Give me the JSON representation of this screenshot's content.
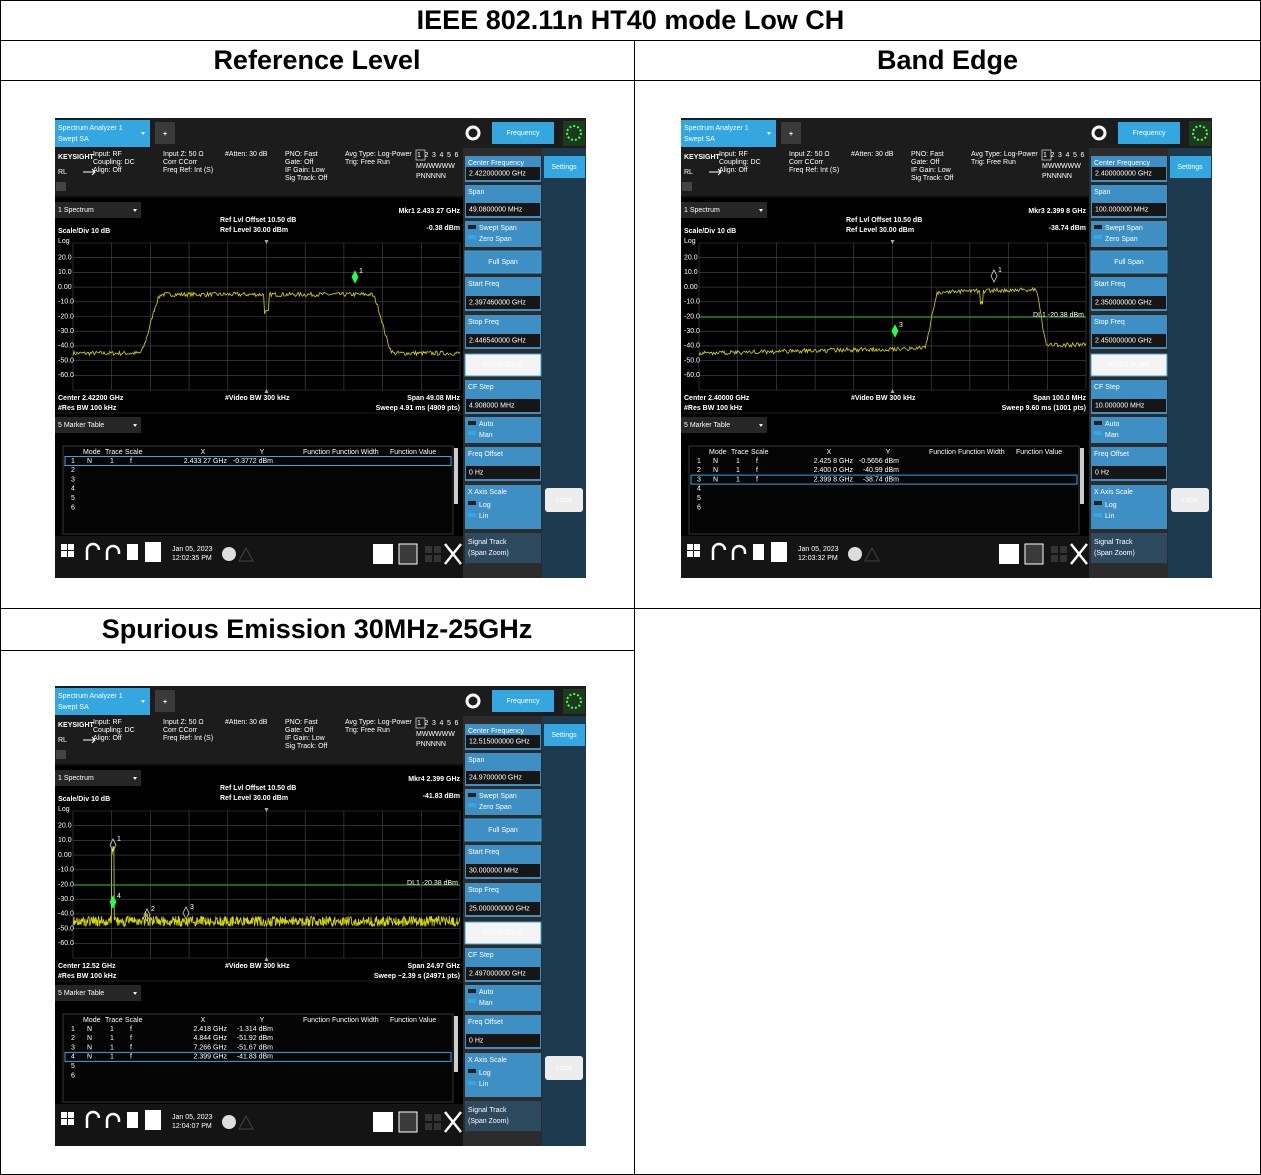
{
  "title": "IEEE 802.11n HT40 mode Low CH",
  "headers": [
    "Reference Level",
    "Band Edge",
    "Spurious Emission 30MHz-25GHz"
  ],
  "analyzer_ui": {
    "tab": [
      "Spectrum Analyzer 1",
      "Swept SA"
    ],
    "plus": "+",
    "mode": "Frequency",
    "brand": "KEYSIGHT",
    "rl": "RL",
    "info": [
      [
        "Input: RF",
        "Coupling: DC",
        "Align: Off"
      ],
      [
        "Input Z: 50 Ω",
        "Corr CCorr",
        "Freq Ref: Int (S)"
      ],
      [
        "#Atten: 30 dB"
      ],
      [
        "PNO: Fast",
        "Gate: Off",
        "IF Gain: Low",
        "Sig Track: Off"
      ],
      [
        "Avg Type: Log-Power",
        "Trig: Free Run"
      ]
    ],
    "trace_numbers": [
      "1",
      "2",
      "3",
      "4",
      "5",
      "6"
    ],
    "trace_types": "MWWWWW",
    "trace_detectors": "PNNNNN",
    "window": "1 Spectrum",
    "scale": "Scale/Div 10 dB",
    "log": "Log",
    "ref_offset": "Ref Lvl Offset 10.50 dB",
    "ref_level": "Ref Level 30.00 dBm",
    "yticks": [
      "20.0",
      "10.0",
      "0.00",
      "-10.0",
      "-20.0",
      "-30.0",
      "-40.0",
      "-50.0",
      "-60.0"
    ],
    "vbw": "#Video BW 300 kHz",
    "rbw": "#Res BW 100 kHz",
    "table_window": "5 Marker Table",
    "table_header": [
      "Mode",
      "Trace",
      "Scale",
      "X",
      "Y",
      "Function",
      "Function Width",
      "Function Value"
    ],
    "row_numbers": [
      "1",
      "2",
      "3",
      "4",
      "5",
      "6"
    ],
    "softkeys": {
      "center_frequency": "Center Frequency",
      "span": "Span",
      "swept_span": "Swept Span",
      "zero_span": "Zero Span",
      "full_span": "Full Span",
      "start_freq": "Start Freq",
      "stop_freq": "Stop Freq",
      "auto_tune": "AUTO TUNE",
      "cf_step": "CF Step",
      "auto": "Auto",
      "man": "Man",
      "freq_offset": "Freq Offset",
      "freq_offset_value": "0 Hz",
      "x_axis_scale": "X Axis Scale",
      "log": "Log",
      "lin": "Lin",
      "signal_track": "Signal Track",
      "span_zoom": "(Span Zoom)"
    },
    "settings": "Settings",
    "local": "Local",
    "help": "?"
  },
  "screens": [
    {
      "center_frequency": "2.422000000 GHz",
      "span": "49.0800000 MHz",
      "start_freq": "2.397460000 GHz",
      "stop_freq": "2.446540000 GHz",
      "cf_step": "4.908000 MHz",
      "marker": "Mkr1 2.433 27 GHz",
      "marker_value": "-0.38 dBm",
      "center": "Center 2.42200 GHz",
      "span_label": "Span 49.08 MHz",
      "sweep": "Sweep 4.91 ms (4909 pts)",
      "plot_markers": [
        "1"
      ],
      "rows": [
        [
          "N",
          "1",
          "f",
          "2.433 27 GHz",
          "-0.3772 dBm"
        ]
      ],
      "selected_row": 0,
      "date": "Jan 05, 2023",
      "time": "12:02:35 PM"
    },
    {
      "center_frequency": "2.400000000 GHz",
      "span": "100.000000 MHz",
      "start_freq": "2.350000000 GHz",
      "stop_freq": "2.450000000 GHz",
      "cf_step": "10.000000 MHz",
      "marker": "Mkr3 2.399 8 GHz",
      "marker_value": "-38.74 dBm",
      "center": "Center 2.40000 GHz",
      "span_label": "Span 100.0 MHz",
      "sweep": "Sweep 9.60 ms (1001 pts)",
      "display_line": "DL1 -20.38 dBm",
      "plot_markers": [
        "1",
        "3"
      ],
      "rows": [
        [
          "N",
          "1",
          "f",
          "2.425 8 GHz",
          "-0.5656 dBm"
        ],
        [
          "N",
          "1",
          "f",
          "2.400 0 GHz",
          "-40.99 dBm"
        ],
        [
          "N",
          "1",
          "f",
          "2.399 8 GHz",
          "-38.74 dBm"
        ]
      ],
      "selected_row": 2,
      "date": "Jan 05, 2023",
      "time": "12:03:32 PM"
    },
    {
      "center_frequency": "12.515000000 GHz",
      "span": "24.9700000 GHz",
      "start_freq": "30.000000 MHz",
      "stop_freq": "25.000000000 GHz",
      "cf_step": "2.497000000 GHz",
      "marker": "Mkr4 2.399 GHz",
      "marker_value": "-41.83 dBm",
      "center": "Center 12.52 GHz",
      "span_label": "Span 24.97 GHz",
      "sweep": "Sweep ~2.39 s (24971 pts)",
      "display_line": "DL1 -20.38 dBm",
      "plot_markers": [
        "1",
        "4",
        "2",
        "3"
      ],
      "rows": [
        [
          "N",
          "1",
          "f",
          "2.418 GHz",
          "-1.314 dBm"
        ],
        [
          "N",
          "1",
          "f",
          "4.844 GHz",
          "-51.92 dBm"
        ],
        [
          "N",
          "1",
          "f",
          "7.266 GHz",
          "-51.67 dBm"
        ],
        [
          "N",
          "1",
          "f",
          "2.399 GHz",
          "-41.83 dBm"
        ]
      ],
      "selected_row": 3,
      "date": "Jan 05, 2023",
      "time": "12:04:07 PM"
    }
  ]
}
